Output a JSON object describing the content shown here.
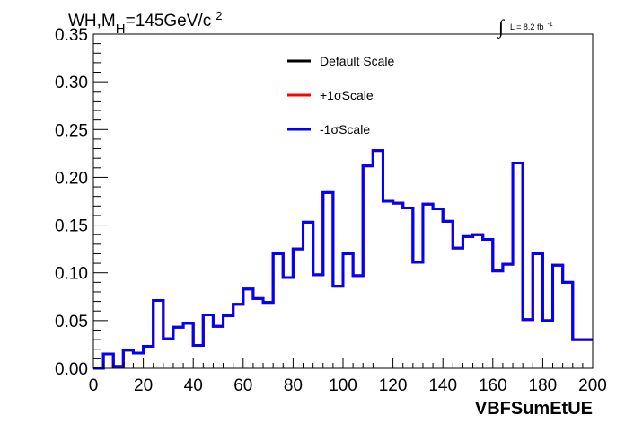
{
  "chart_data": {
    "type": "line",
    "title": {
      "main": "WH,M",
      "sub": "H",
      "rest": "=145GeV/c",
      "sup": "2"
    },
    "lumi": {
      "integral": "∫",
      "label": "L = 8.2 fb",
      "exp": "-1"
    },
    "xlabel": "VBFSumEtUE",
    "ylabel": "",
    "xlim": [
      0,
      200
    ],
    "ylim": [
      0,
      0.35
    ],
    "xticks": [
      "0",
      "20",
      "40",
      "60",
      "80",
      "100",
      "120",
      "140",
      "160",
      "180",
      "200"
    ],
    "yticks": [
      "0.00",
      "0.05",
      "0.10",
      "0.15",
      "0.20",
      "0.25",
      "0.30",
      "0.35"
    ],
    "bin_width": 4,
    "bin_edges_start": 0,
    "series": [
      {
        "name": "Default Scale",
        "color": "#000000",
        "values": [
          0.0,
          0.015,
          0.002,
          0.019,
          0.016,
          0.023,
          0.071,
          0.031,
          0.043,
          0.047,
          0.024,
          0.056,
          0.044,
          0.055,
          0.067,
          0.083,
          0.073,
          0.069,
          0.12,
          0.095,
          0.125,
          0.153,
          0.098,
          0.184,
          0.086,
          0.12,
          0.097,
          0.212,
          0.228,
          0.175,
          0.173,
          0.168,
          0.111,
          0.172,
          0.167,
          0.154,
          0.126,
          0.138,
          0.14,
          0.135,
          0.102,
          0.109,
          0.215,
          0.051,
          0.12,
          0.05,
          0.108,
          0.09,
          0.03,
          0.03
        ]
      },
      {
        "name": "+1σScale",
        "color": "#ff0000",
        "values": [
          0.0,
          0.015,
          0.002,
          0.019,
          0.016,
          0.023,
          0.071,
          0.031,
          0.043,
          0.047,
          0.024,
          0.056,
          0.044,
          0.055,
          0.067,
          0.083,
          0.073,
          0.069,
          0.12,
          0.095,
          0.125,
          0.153,
          0.098,
          0.184,
          0.086,
          0.12,
          0.097,
          0.212,
          0.228,
          0.175,
          0.173,
          0.168,
          0.111,
          0.172,
          0.167,
          0.154,
          0.126,
          0.138,
          0.14,
          0.135,
          0.102,
          0.109,
          0.215,
          0.051,
          0.12,
          0.05,
          0.108,
          0.09,
          0.03,
          0.03
        ]
      },
      {
        "name": "-1σScale",
        "color": "#0000ff",
        "values": [
          0.0,
          0.015,
          0.002,
          0.019,
          0.016,
          0.023,
          0.071,
          0.031,
          0.043,
          0.047,
          0.024,
          0.056,
          0.044,
          0.055,
          0.067,
          0.083,
          0.073,
          0.069,
          0.12,
          0.095,
          0.125,
          0.153,
          0.098,
          0.184,
          0.086,
          0.12,
          0.097,
          0.212,
          0.228,
          0.175,
          0.173,
          0.168,
          0.111,
          0.172,
          0.167,
          0.154,
          0.126,
          0.138,
          0.14,
          0.135,
          0.102,
          0.109,
          0.215,
          0.051,
          0.12,
          0.05,
          0.108,
          0.09,
          0.03,
          0.03
        ]
      }
    ],
    "legend": {
      "position": "top-center",
      "entries": [
        "Default Scale",
        "+1σScale",
        "-1σScale"
      ]
    },
    "grid": false
  }
}
